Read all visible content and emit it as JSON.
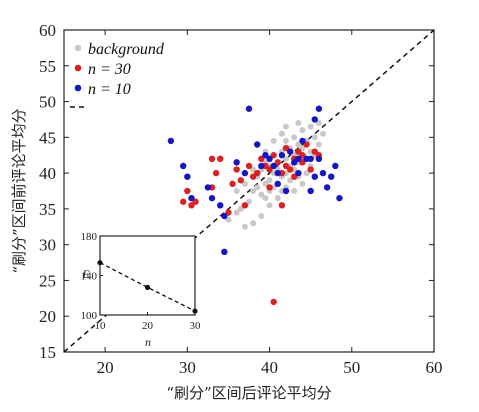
{
  "chart_data": [
    {
      "type": "scatter",
      "title": "",
      "xlabel": "“刷分”区间后评论平均分",
      "ylabel": "“刷分”区间前评论平均分",
      "xlim": [
        15,
        60
      ],
      "ylim": [
        15,
        60
      ],
      "xticks": [
        "20",
        "30",
        "40",
        "50",
        "60"
      ],
      "yticks": [
        "15",
        "20",
        "25",
        "30",
        "35",
        "40",
        "45",
        "50",
        "55",
        "60"
      ],
      "grid": false,
      "legend_position": "top-left",
      "reference_line": {
        "label": "",
        "points": [
          [
            15,
            15
          ],
          [
            60,
            60
          ]
        ],
        "style": "dashed"
      },
      "series": [
        {
          "name": "background",
          "color": "#c8c8c8",
          "points": [
            [
              34.5,
              29
            ],
            [
              35,
              33.5
            ],
            [
              36,
              34.5
            ],
            [
              36.5,
              35
            ],
            [
              37,
              32.5
            ],
            [
              37.5,
              36
            ],
            [
              38,
              33
            ],
            [
              38,
              37.5
            ],
            [
              38.5,
              38
            ],
            [
              38.5,
              39.5
            ],
            [
              39,
              34
            ],
            [
              39,
              37
            ],
            [
              39,
              40.5
            ],
            [
              39.5,
              36.5
            ],
            [
              39.5,
              38.5
            ],
            [
              39.5,
              41.5
            ],
            [
              40,
              35.5
            ],
            [
              40,
              37.5
            ],
            [
              40,
              39
            ],
            [
              40,
              41
            ],
            [
              40.5,
              38
            ],
            [
              40.5,
              40
            ],
            [
              40.5,
              42.5
            ],
            [
              41,
              36.5
            ],
            [
              41,
              38.5
            ],
            [
              41,
              40.5
            ],
            [
              41,
              41.5
            ],
            [
              41.5,
              37.5
            ],
            [
              41.5,
              39.5
            ],
            [
              41.5,
              43
            ],
            [
              42,
              38
            ],
            [
              42,
              40
            ],
            [
              42,
              42
            ],
            [
              42,
              44.5
            ],
            [
              42.5,
              39
            ],
            [
              42.5,
              41
            ],
            [
              42.5,
              43.5
            ],
            [
              43,
              37.5
            ],
            [
              43,
              40.5
            ],
            [
              43,
              42.5
            ],
            [
              43,
              45
            ],
            [
              43.5,
              39.5
            ],
            [
              43.5,
              41.5
            ],
            [
              43.5,
              44
            ],
            [
              44,
              38.5
            ],
            [
              44,
              42
            ],
            [
              44,
              43.5
            ],
            [
              44,
              46
            ],
            [
              44.5,
              40
            ],
            [
              44.5,
              44.5
            ],
            [
              45,
              41
            ],
            [
              45,
              43
            ],
            [
              45,
              46.5
            ],
            [
              45.5,
              42.5
            ],
            [
              45.5,
              45
            ],
            [
              46,
              44
            ],
            [
              46,
              47
            ],
            [
              46.5,
              45.5
            ],
            [
              38,
              40.5
            ],
            [
              39.5,
              43
            ],
            [
              40.5,
              44.5
            ],
            [
              37,
              38.5
            ],
            [
              36,
              37.5
            ],
            [
              41.5,
              45.5
            ],
            [
              42,
              46.5
            ],
            [
              43.5,
              47
            ]
          ]
        },
        {
          "name": "n = 30",
          "color": "#e02020",
          "points": [
            [
              29.5,
              36
            ],
            [
              30,
              37.5
            ],
            [
              30.5,
              35.5
            ],
            [
              31,
              36
            ],
            [
              33,
              38
            ],
            [
              33,
              42
            ],
            [
              33.5,
              40
            ],
            [
              34,
              42
            ],
            [
              35,
              34.5
            ],
            [
              35.5,
              38.5
            ],
            [
              36,
              40.5
            ],
            [
              36.5,
              39
            ],
            [
              37,
              35.5
            ],
            [
              37.5,
              41
            ],
            [
              38,
              39.5
            ],
            [
              38.5,
              40
            ],
            [
              39,
              42
            ],
            [
              39.5,
              41
            ],
            [
              40,
              40.5
            ],
            [
              40,
              38
            ],
            [
              40.5,
              42.5
            ],
            [
              41,
              41.5
            ],
            [
              41.5,
              40
            ],
            [
              41.5,
              35.5
            ],
            [
              42,
              41
            ],
            [
              42,
              43.5
            ],
            [
              42.5,
              40.5
            ],
            [
              43,
              39.5
            ],
            [
              43,
              42
            ],
            [
              43.5,
              43
            ],
            [
              44,
              41.5
            ],
            [
              44,
              42.5
            ],
            [
              44.5,
              44
            ],
            [
              45,
              40.5
            ],
            [
              45.5,
              43
            ],
            [
              46,
              42.5
            ],
            [
              40.5,
              22
            ]
          ]
        },
        {
          "name": "n = 10",
          "color": "#1515c8",
          "points": [
            [
              28,
              44.5
            ],
            [
              29.5,
              41
            ],
            [
              30,
              39.5
            ],
            [
              30.5,
              36.5
            ],
            [
              32.5,
              38
            ],
            [
              33,
              36.5
            ],
            [
              34,
              35.5
            ],
            [
              34.5,
              34
            ],
            [
              34.5,
              29
            ],
            [
              36,
              41.5
            ],
            [
              37,
              40
            ],
            [
              37.5,
              49
            ],
            [
              38.5,
              44
            ],
            [
              39,
              41
            ],
            [
              39.5,
              42.5
            ],
            [
              40,
              42
            ],
            [
              40.5,
              41
            ],
            [
              41,
              40
            ],
            [
              41,
              38.5
            ],
            [
              41.5,
              42.5
            ],
            [
              42,
              37.5
            ],
            [
              42.5,
              43
            ],
            [
              43,
              41.5
            ],
            [
              43.5,
              42
            ],
            [
              44,
              44.5
            ],
            [
              44.5,
              42
            ],
            [
              45,
              37.5
            ],
            [
              45,
              42
            ],
            [
              45.5,
              47.5
            ],
            [
              45.5,
              39.5
            ],
            [
              46,
              49
            ],
            [
              46,
              42
            ],
            [
              46.5,
              40
            ],
            [
              47,
              38
            ],
            [
              47.5,
              39.5
            ],
            [
              48,
              41
            ],
            [
              48.5,
              36.5
            ],
            [
              43.5,
              40
            ]
          ]
        }
      ]
    },
    {
      "type": "line",
      "title": "",
      "xlabel": "n",
      "ylabel": "E",
      "xlim": [
        10,
        30
      ],
      "ylim": [
        100,
        180
      ],
      "xticks": [
        "10",
        "20",
        "30"
      ],
      "yticks": [
        "100",
        "140",
        "180"
      ],
      "series": [
        {
          "name": "",
          "color": "#111111",
          "points": [
            [
              10,
              153
            ],
            [
              20,
              128
            ],
            [
              30,
              104
            ]
          ]
        }
      ]
    }
  ]
}
